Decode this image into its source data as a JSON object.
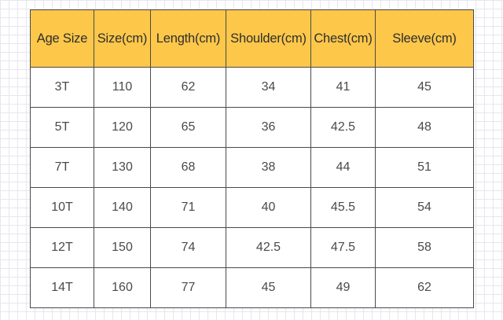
{
  "table": {
    "headers": [
      "Age Size",
      "Size(cm)",
      "Length(cm)",
      "Shoulder(cm)",
      "Chest(cm)",
      "Sleeve(cm)"
    ],
    "rows": [
      [
        "3T",
        "110",
        "62",
        "34",
        "41",
        "45"
      ],
      [
        "5T",
        "120",
        "65",
        "36",
        "42.5",
        "48"
      ],
      [
        "7T",
        "130",
        "68",
        "38",
        "44",
        "51"
      ],
      [
        "10T",
        "140",
        "71",
        "40",
        "45.5",
        "54"
      ],
      [
        "12T",
        "150",
        "74",
        "42.5",
        "47.5",
        "58"
      ],
      [
        "14T",
        "160",
        "77",
        "45",
        "49",
        "62"
      ]
    ]
  },
  "colors": {
    "header_background": "#fdc74a",
    "border": "#4a4a4a",
    "grid_lines": "#e6e6ee"
  }
}
